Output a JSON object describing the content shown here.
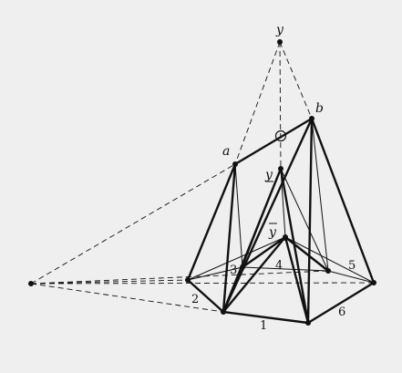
{
  "labels": {
    "y_top": "y",
    "a": "a",
    "b": "b",
    "y_under": "y",
    "y_over": "y",
    "n1": "1",
    "n2": "2",
    "n3": "3",
    "n4": "4",
    "n5": "5",
    "n6": "6"
  },
  "colors": {
    "background": "#efefef",
    "ink": "#111111"
  }
}
